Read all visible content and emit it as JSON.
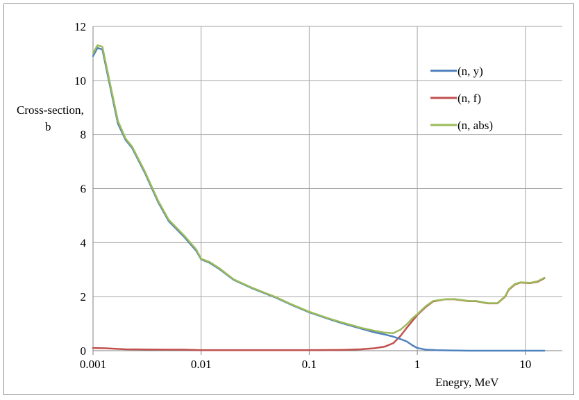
{
  "chart_data": {
    "type": "line",
    "title": "",
    "xlabel": "Enegry, MeV",
    "ylabel_lines": [
      "Cross-section,",
      "b"
    ],
    "x_scale": "log",
    "xlim": [
      0.001,
      15
    ],
    "ylim": [
      0,
      12
    ],
    "x_ticks": [
      0.001,
      0.01,
      0.1,
      1,
      10
    ],
    "x_tick_labels": [
      "0.001",
      "0.01",
      "0.1",
      "1",
      "10"
    ],
    "y_ticks": [
      0,
      2,
      4,
      6,
      8,
      10,
      12
    ],
    "y_tick_labels": [
      "0",
      "2",
      "4",
      "6",
      "8",
      "10",
      "12"
    ],
    "grid": true,
    "legend_position": "top-right",
    "series": [
      {
        "name": "(n, y)",
        "color": "#4f81bd",
        "points": [
          [
            0.001,
            10.9
          ],
          [
            0.0011,
            11.2
          ],
          [
            0.00122,
            11.15
          ],
          [
            0.0014,
            10.0
          ],
          [
            0.0017,
            8.4
          ],
          [
            0.002,
            7.8
          ],
          [
            0.0023,
            7.5
          ],
          [
            0.003,
            6.6
          ],
          [
            0.004,
            5.5
          ],
          [
            0.005,
            4.8
          ],
          [
            0.007,
            4.2
          ],
          [
            0.009,
            3.7
          ],
          [
            0.01,
            3.38
          ],
          [
            0.012,
            3.25
          ],
          [
            0.015,
            3.0
          ],
          [
            0.02,
            2.62
          ],
          [
            0.03,
            2.3
          ],
          [
            0.05,
            1.95
          ],
          [
            0.07,
            1.68
          ],
          [
            0.1,
            1.42
          ],
          [
            0.15,
            1.18
          ],
          [
            0.2,
            1.02
          ],
          [
            0.3,
            0.82
          ],
          [
            0.4,
            0.68
          ],
          [
            0.5,
            0.6
          ],
          [
            0.6,
            0.52
          ],
          [
            0.7,
            0.43
          ],
          [
            0.8,
            0.34
          ],
          [
            0.9,
            0.2
          ],
          [
            1.0,
            0.1
          ],
          [
            1.2,
            0.04
          ],
          [
            1.5,
            0.02
          ],
          [
            2,
            0.01
          ],
          [
            3,
            0.0
          ],
          [
            5,
            0.0
          ],
          [
            10,
            0.0
          ],
          [
            15,
            0.0
          ]
        ]
      },
      {
        "name": "(n, f)",
        "color": "#c0504d",
        "points": [
          [
            0.001,
            0.1
          ],
          [
            0.0013,
            0.09
          ],
          [
            0.002,
            0.05
          ],
          [
            0.005,
            0.04
          ],
          [
            0.007,
            0.04
          ],
          [
            0.01,
            0.02
          ],
          [
            0.05,
            0.02
          ],
          [
            0.1,
            0.02
          ],
          [
            0.2,
            0.03
          ],
          [
            0.3,
            0.05
          ],
          [
            0.4,
            0.09
          ],
          [
            0.5,
            0.15
          ],
          [
            0.6,
            0.28
          ],
          [
            0.7,
            0.55
          ],
          [
            0.8,
            0.85
          ],
          [
            0.9,
            1.1
          ],
          [
            1.0,
            1.32
          ],
          [
            1.2,
            1.62
          ],
          [
            1.4,
            1.82
          ],
          [
            1.8,
            1.9
          ],
          [
            2.2,
            1.9
          ],
          [
            3,
            1.83
          ],
          [
            3.5,
            1.83
          ],
          [
            4.5,
            1.75
          ],
          [
            5.5,
            1.75
          ],
          [
            6.5,
            2.0
          ],
          [
            7,
            2.25
          ],
          [
            8,
            2.45
          ],
          [
            9,
            2.52
          ],
          [
            11,
            2.5
          ],
          [
            13,
            2.55
          ],
          [
            15,
            2.68
          ]
        ]
      },
      {
        "name": "(n, abs)",
        "color": "#9bbb59",
        "points": [
          [
            0.001,
            11.0
          ],
          [
            0.0011,
            11.3
          ],
          [
            0.00122,
            11.25
          ],
          [
            0.0014,
            10.1
          ],
          [
            0.0017,
            8.5
          ],
          [
            0.002,
            7.85
          ],
          [
            0.0023,
            7.55
          ],
          [
            0.003,
            6.65
          ],
          [
            0.004,
            5.55
          ],
          [
            0.005,
            4.85
          ],
          [
            0.007,
            4.25
          ],
          [
            0.009,
            3.75
          ],
          [
            0.01,
            3.4
          ],
          [
            0.012,
            3.28
          ],
          [
            0.015,
            3.03
          ],
          [
            0.02,
            2.64
          ],
          [
            0.03,
            2.32
          ],
          [
            0.05,
            1.97
          ],
          [
            0.07,
            1.7
          ],
          [
            0.1,
            1.44
          ],
          [
            0.15,
            1.2
          ],
          [
            0.2,
            1.05
          ],
          [
            0.3,
            0.85
          ],
          [
            0.4,
            0.74
          ],
          [
            0.5,
            0.67
          ],
          [
            0.6,
            0.65
          ],
          [
            0.7,
            0.78
          ],
          [
            0.8,
            0.98
          ],
          [
            0.9,
            1.2
          ],
          [
            1.0,
            1.35
          ],
          [
            1.2,
            1.65
          ],
          [
            1.4,
            1.84
          ],
          [
            1.8,
            1.9
          ],
          [
            2.2,
            1.91
          ],
          [
            3,
            1.84
          ],
          [
            3.5,
            1.84
          ],
          [
            4.5,
            1.76
          ],
          [
            5.5,
            1.76
          ],
          [
            6.5,
            2.02
          ],
          [
            7,
            2.27
          ],
          [
            8,
            2.47
          ],
          [
            9,
            2.53
          ],
          [
            11,
            2.51
          ],
          [
            13,
            2.57
          ],
          [
            15,
            2.7
          ]
        ]
      }
    ]
  }
}
